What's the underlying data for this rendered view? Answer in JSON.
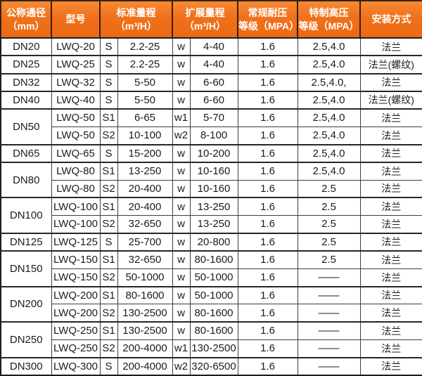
{
  "table": {
    "header": {
      "diameter_line1": "公称通径",
      "diameter_line2": "（mm）",
      "model": "型号",
      "standard_line1": "标准量程",
      "standard_line2": "（m³/H）",
      "extended_line1": "扩展量程",
      "extended_line2": "（m³/H）",
      "normal_line1": "常规耐压",
      "normal_line2": "等级（MPA）",
      "high_line1": "特制高压",
      "high_line2": "等级（MPA）",
      "install": "安装方式"
    },
    "groups": [
      {
        "diameter": "DN20",
        "rows": [
          {
            "model": "LWQ-20",
            "s_mark": "S",
            "standard": "2.2-25",
            "w_mark": "w",
            "extended": "4-40",
            "normal_mpa": "1.6",
            "high_mpa": "2.5,4.0",
            "install": "法兰"
          }
        ]
      },
      {
        "diameter": "DN25",
        "rows": [
          {
            "model": "LWQ-25",
            "s_mark": "S",
            "standard": "2.2-25",
            "w_mark": "w",
            "extended": "4-40",
            "normal_mpa": "1.6",
            "high_mpa": "2.5,4.0",
            "install": "法兰(螺纹)"
          }
        ]
      },
      {
        "diameter": "DN32",
        "rows": [
          {
            "model": "LWQ-32",
            "s_mark": "S",
            "standard": "5-50",
            "w_mark": "w",
            "extended": "6-60",
            "normal_mpa": "1.6",
            "high_mpa": "2.5,4.0,",
            "install": "法兰"
          }
        ]
      },
      {
        "diameter": "DN40",
        "rows": [
          {
            "model": "LWQ-40",
            "s_mark": "S",
            "standard": "5-50",
            "w_mark": "w",
            "extended": "6-60",
            "normal_mpa": "1.6",
            "high_mpa": "2.5,4.0",
            "install": "法兰(螺纹)"
          }
        ]
      },
      {
        "diameter": "DN50",
        "rows": [
          {
            "model": "LWQ-50",
            "s_mark": "S1",
            "standard": "6-65",
            "w_mark": "w1",
            "extended": "5-70",
            "normal_mpa": "1.6",
            "high_mpa": "2.5,4.0",
            "install": "法兰"
          },
          {
            "model": "LWQ-50",
            "s_mark": "S2",
            "standard": "10-100",
            "w_mark": "w2",
            "extended": "8-100",
            "normal_mpa": "1.6",
            "high_mpa": "2.5,4.0",
            "install": "法兰"
          }
        ]
      },
      {
        "diameter": "DN65",
        "rows": [
          {
            "model": "LWQ-65",
            "s_mark": "S",
            "standard": "15-200",
            "w_mark": "w",
            "extended": "10-200",
            "normal_mpa": "1.6",
            "high_mpa": "2.5,4.0",
            "install": "法兰"
          }
        ]
      },
      {
        "diameter": "DN80",
        "rows": [
          {
            "model": "LWQ-80",
            "s_mark": "S1",
            "standard": "13-250",
            "w_mark": "w",
            "extended": "10-160",
            "normal_mpa": "1.6",
            "high_mpa": "2.5,4.0",
            "install": "法兰"
          },
          {
            "model": "LWQ-80",
            "s_mark": "S2",
            "standard": "20-400",
            "w_mark": "w",
            "extended": "10-160",
            "normal_mpa": "1.6",
            "high_mpa": "2.5",
            "install": "法兰"
          }
        ]
      },
      {
        "diameter": "DN100",
        "rows": [
          {
            "model": "LWQ-100",
            "s_mark": "S1",
            "standard": "20-400",
            "w_mark": "w",
            "extended": "13-250",
            "normal_mpa": "1.6",
            "high_mpa": "2.5",
            "install": "法兰"
          },
          {
            "model": "LWQ-100",
            "s_mark": "S2",
            "standard": "32-650",
            "w_mark": "w",
            "extended": "13-250",
            "normal_mpa": "1.6",
            "high_mpa": "2.5",
            "install": "法兰"
          }
        ]
      },
      {
        "diameter": "DN125",
        "rows": [
          {
            "model": "LWQ-125",
            "s_mark": "S",
            "standard": "25-700",
            "w_mark": "w",
            "extended": "20-800",
            "normal_mpa": "1.6",
            "high_mpa": "2.5",
            "install": "法兰"
          }
        ]
      },
      {
        "diameter": "DN150",
        "rows": [
          {
            "model": "LWQ-150",
            "s_mark": "S1",
            "standard": "32-650",
            "w_mark": "w",
            "extended": "80-1600",
            "normal_mpa": "1.6",
            "high_mpa": "2.5",
            "install": "法兰"
          },
          {
            "model": "LWQ-150",
            "s_mark": "S2",
            "standard": "50-1000",
            "w_mark": "w",
            "extended": "50-1000",
            "normal_mpa": "1.6",
            "high_mpa": "——",
            "install": "法兰"
          }
        ]
      },
      {
        "diameter": "DN200",
        "rows": [
          {
            "model": "LWQ-200",
            "s_mark": "S1",
            "standard": "80-1600",
            "w_mark": "w",
            "extended": "50-1000",
            "normal_mpa": "1.6",
            "high_mpa": "——",
            "install": "法兰"
          },
          {
            "model": "LWQ-200",
            "s_mark": "S2",
            "standard": "130-2500",
            "w_mark": "w",
            "extended": "80-1600",
            "normal_mpa": "1.6",
            "high_mpa": "——",
            "install": "法兰"
          }
        ]
      },
      {
        "diameter": "DN250",
        "rows": [
          {
            "model": "LWQ-250",
            "s_mark": "S1",
            "standard": "130-2500",
            "w_mark": "w",
            "extended": "80-1600",
            "normal_mpa": "1.6",
            "high_mpa": "——",
            "install": "法兰"
          },
          {
            "model": "LWQ-250",
            "s_mark": "S2",
            "standard": "200-4000",
            "w_mark": "w1",
            "extended": "130-2500",
            "normal_mpa": "1.6",
            "high_mpa": "——",
            "install": "法兰"
          }
        ]
      },
      {
        "diameter": "DN300",
        "rows": [
          {
            "model": "LWQ-300",
            "s_mark": "S",
            "standard": "200-4000",
            "w_mark": "w2",
            "extended": "320-6500",
            "normal_mpa": "1.6",
            "high_mpa": "——",
            "install": "法兰"
          }
        ]
      }
    ]
  },
  "colors": {
    "header_bg": "#f0701d",
    "header_text": "#ffffff",
    "grid_line": "#3d3d3d",
    "group_line": "#262626",
    "sub_row_line": "#8c8c8c",
    "body_text": "#1c1c1c",
    "body_bg": "#ffffff"
  }
}
